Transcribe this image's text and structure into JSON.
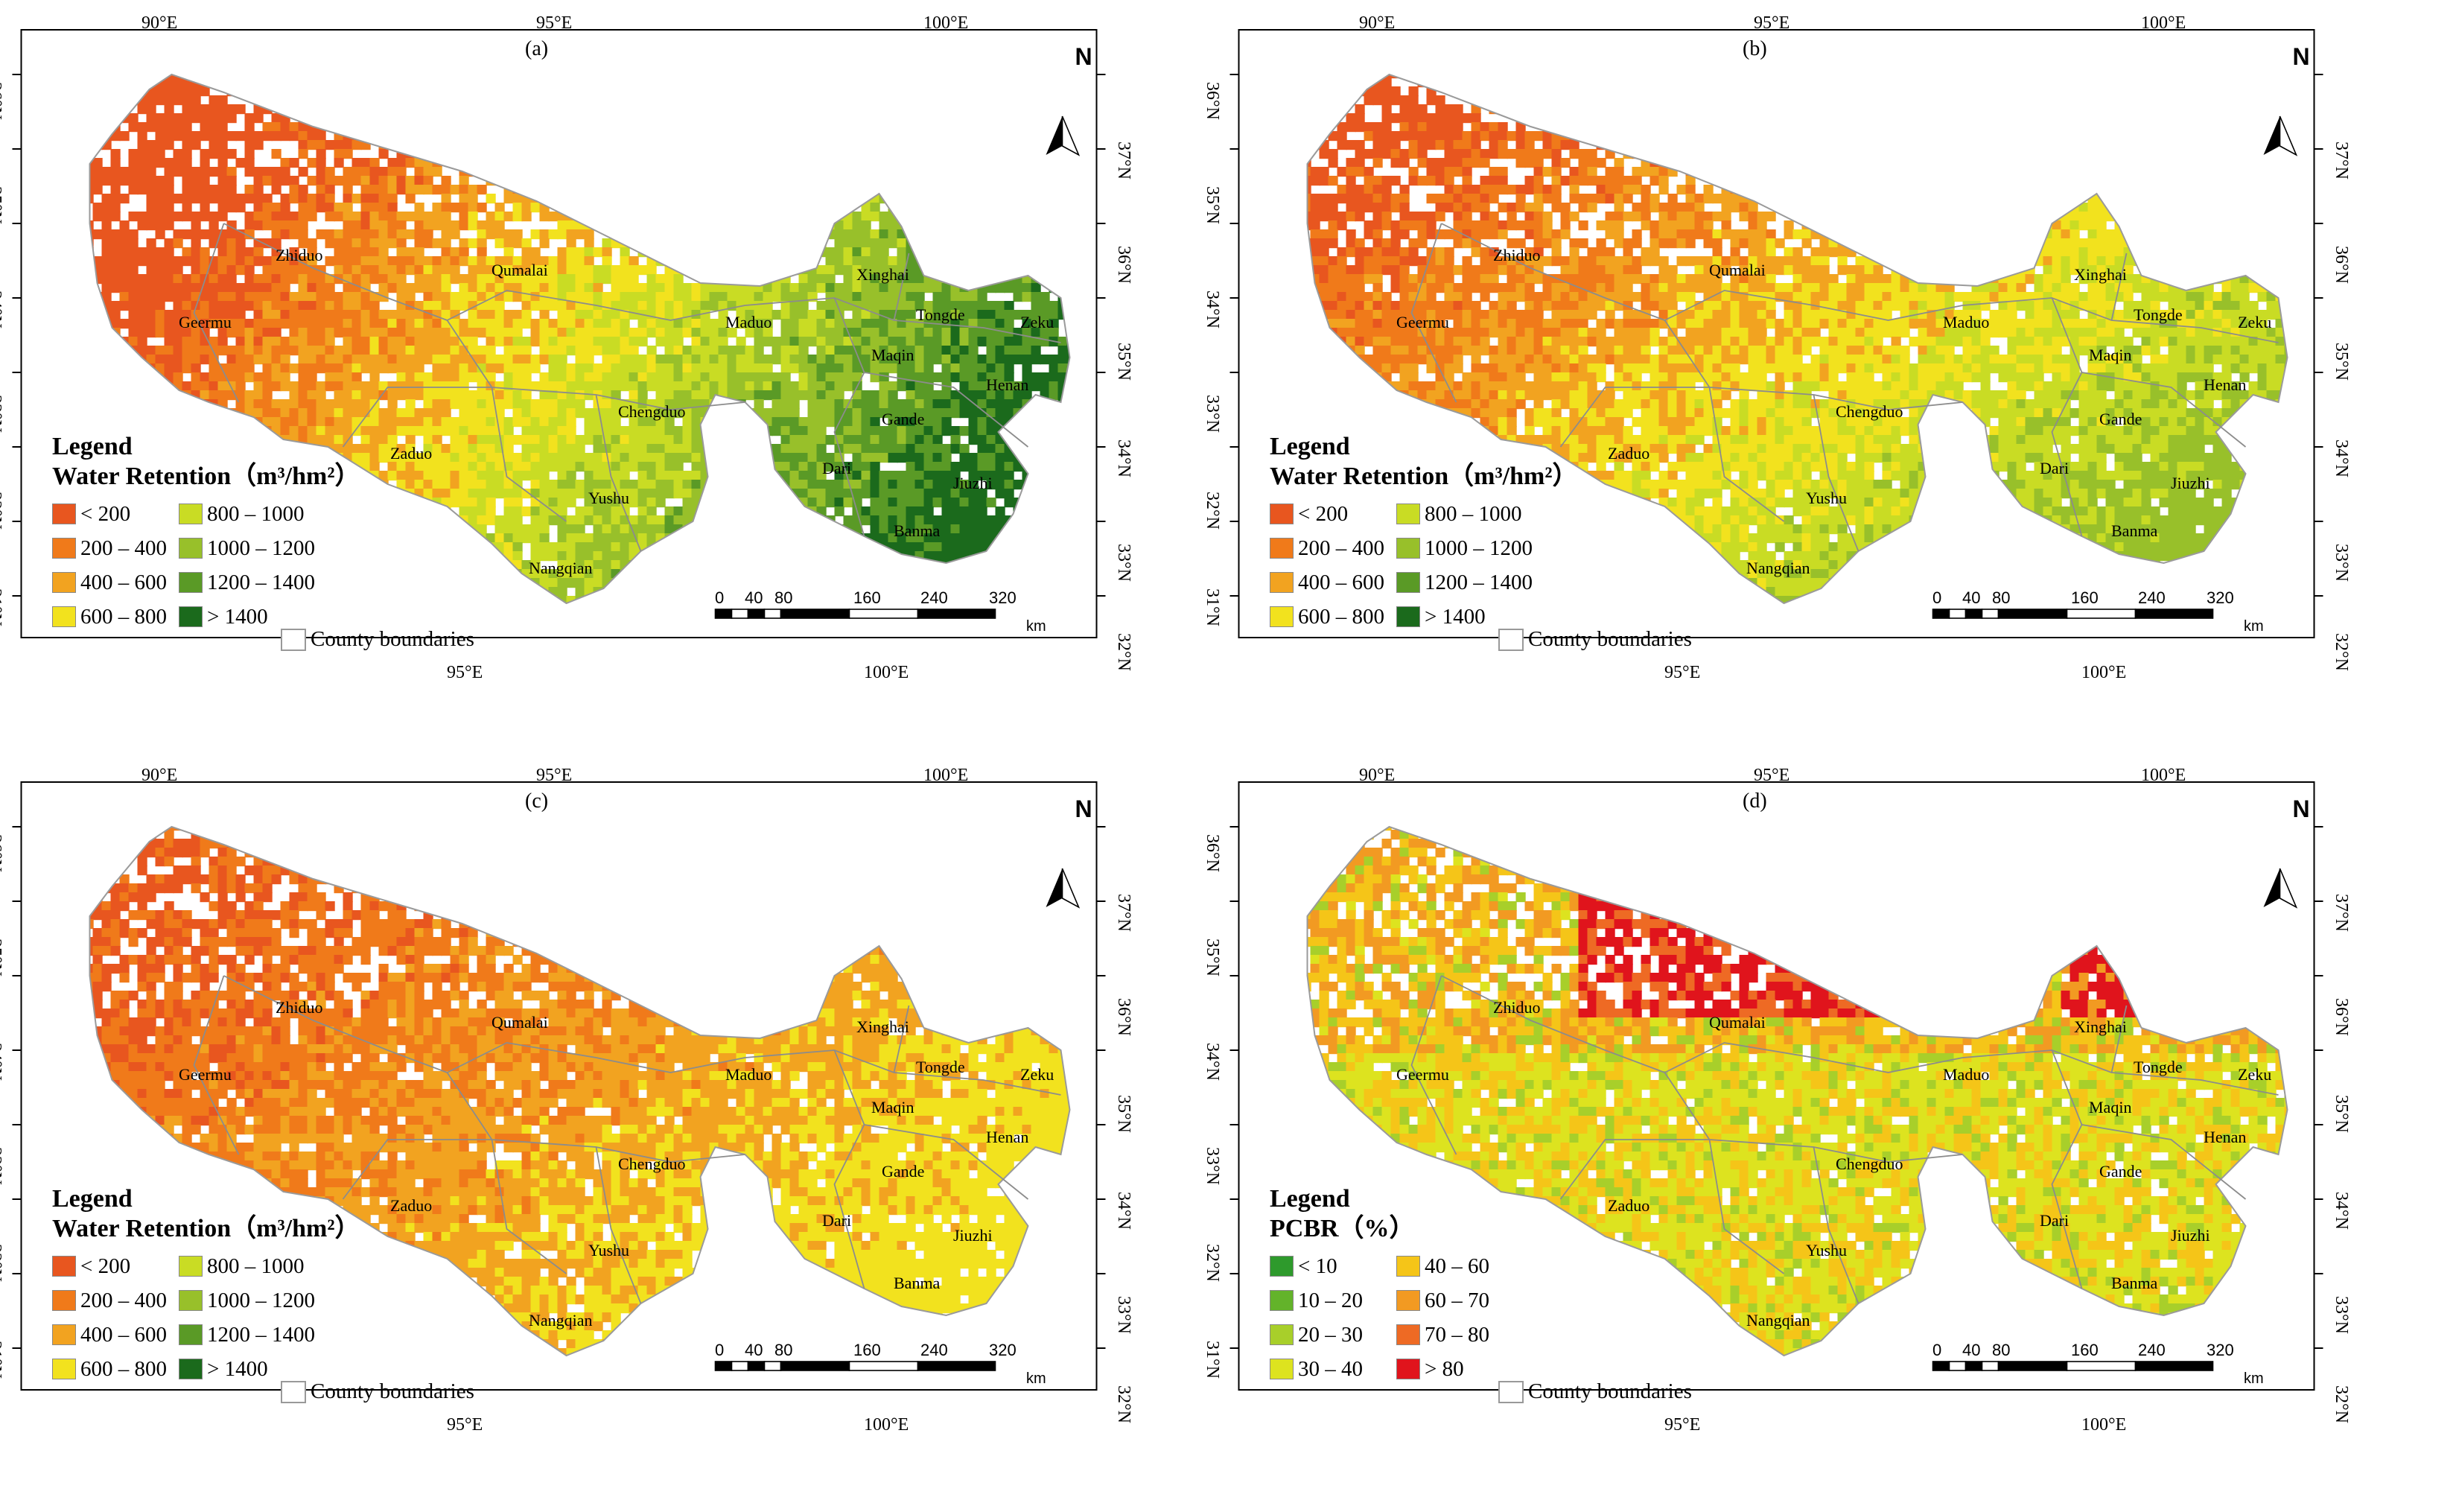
{
  "panels": [
    {
      "id": "a",
      "label": "(a)",
      "legend_title": "Legend",
      "legend_subtitle": "Water Retention（m³/hm²）",
      "legend_items": [
        {
          "label": "< 200",
          "color": "#e8561f"
        },
        {
          "label": "800 – 1000",
          "color": "#c9dc24"
        },
        {
          "label": "200 – 400",
          "color": "#f07a1a"
        },
        {
          "label": "1000 – 1200",
          "color": "#98c02a"
        },
        {
          "label": "400 – 600",
          "color": "#f2a320"
        },
        {
          "label": "1200 – 1400",
          "color": "#5a9a26"
        },
        {
          "label": "600 – 800",
          "color": "#f2e21e"
        },
        {
          "label": "> 1400",
          "color": "#1b6a1c"
        }
      ],
      "county_label": "County boundaries",
      "palette": [
        "#e8561f",
        "#f07a1a",
        "#f2a320",
        "#f2e21e",
        "#c9dc24",
        "#98c02a",
        "#5a9a26",
        "#1b6a1c"
      ]
    },
    {
      "id": "b",
      "label": "(b)",
      "legend_title": "Legend",
      "legend_subtitle": "Water Retention（m³/hm²）",
      "legend_items": [
        {
          "label": "< 200",
          "color": "#e8561f"
        },
        {
          "label": "800 – 1000",
          "color": "#c9dc24"
        },
        {
          "label": "200 – 400",
          "color": "#f07a1a"
        },
        {
          "label": "1000 – 1200",
          "color": "#98c02a"
        },
        {
          "label": "400 – 600",
          "color": "#f2a320"
        },
        {
          "label": "1200 – 1400",
          "color": "#5a9a26"
        },
        {
          "label": "600 – 800",
          "color": "#f2e21e"
        },
        {
          "label": "> 1400",
          "color": "#1b6a1c"
        }
      ],
      "county_label": "County boundaries",
      "palette": [
        "#e8561f",
        "#f07a1a",
        "#f2a320",
        "#f2e21e",
        "#c9dc24",
        "#98c02a"
      ]
    },
    {
      "id": "c",
      "label": "(c)",
      "legend_title": "Legend",
      "legend_subtitle": "Water Retention（m³/hm²）",
      "legend_items": [
        {
          "label": "< 200",
          "color": "#e8561f"
        },
        {
          "label": "800 – 1000",
          "color": "#c9dc24"
        },
        {
          "label": "200 – 400",
          "color": "#f07a1a"
        },
        {
          "label": "1000 – 1200",
          "color": "#98c02a"
        },
        {
          "label": "400 – 600",
          "color": "#f2a320"
        },
        {
          "label": "1200 – 1400",
          "color": "#5a9a26"
        },
        {
          "label": "600 – 800",
          "color": "#f2e21e"
        },
        {
          "label": "> 1400",
          "color": "#1b6a1c"
        }
      ],
      "county_label": "County boundaries",
      "palette": [
        "#e8561f",
        "#f07a1a",
        "#f2a320",
        "#f2e21e"
      ]
    },
    {
      "id": "d",
      "label": "(d)",
      "legend_title": "Legend",
      "legend_subtitle": "PCBR（%）",
      "legend_items": [
        {
          "label": "< 10",
          "color": "#2e9a2c"
        },
        {
          "label": "40 – 60",
          "color": "#f5c518"
        },
        {
          "label": "10 – 20",
          "color": "#63b32a"
        },
        {
          "label": "60 – 70",
          "color": "#f29a22"
        },
        {
          "label": "20 – 30",
          "color": "#a8cf2a"
        },
        {
          "label": "70 – 80",
          "color": "#ee6a24"
        },
        {
          "label": "30 – 40",
          "color": "#dde31f"
        },
        {
          "label": "> 80",
          "color": "#e0141c"
        }
      ],
      "county_label": "County boundaries",
      "palette": [
        "#dde31f",
        "#f5c518",
        "#f29a22",
        "#ee6a24",
        "#e0141c",
        "#a8cf2a"
      ]
    }
  ],
  "axes": {
    "top_ticks": [
      "90°E",
      "95°E",
      "100°E"
    ],
    "bottom_ticks": [
      "95°E",
      "100°E"
    ],
    "left_ticks": [
      "36°N",
      "35°N",
      "34°N",
      "33°N",
      "32°N",
      "31°N"
    ],
    "right_ticks": [
      "37°N",
      "36°N",
      "35°N",
      "34°N",
      "33°N",
      "32°N"
    ]
  },
  "scale_bar": {
    "labels": [
      "0",
      "40",
      "80",
      "160",
      "240",
      "320"
    ],
    "unit": "km"
  },
  "north_label": "N",
  "counties": [
    "Zhiduo",
    "Qumalai",
    "Geermu",
    "Xinghai",
    "Tongde",
    "Zeku",
    "Maduo",
    "Maqin",
    "Henan",
    "Chengduo",
    "Gande",
    "Zaduo",
    "Dari",
    "Jiuzhi",
    "Yushu",
    "Banma",
    "Nangqian"
  ]
}
